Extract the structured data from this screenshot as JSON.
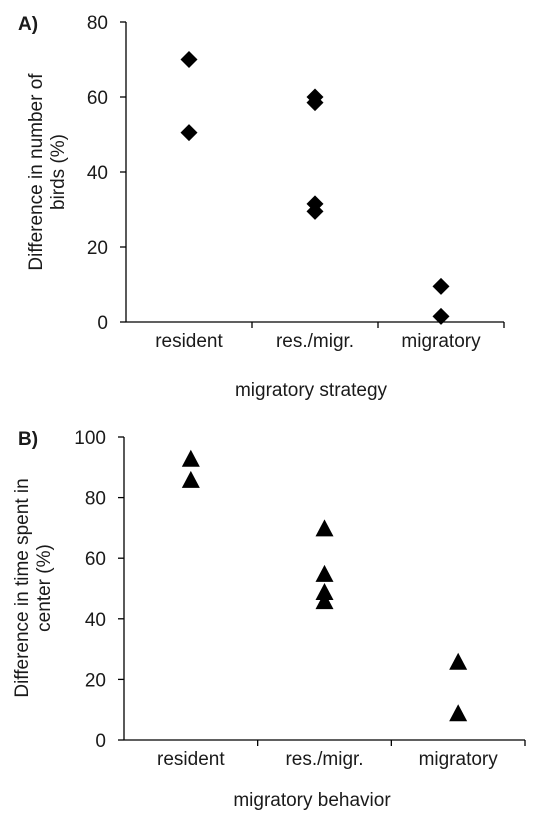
{
  "chart_data": [
    {
      "panel": "A)",
      "type": "scatter",
      "marker": "diamond",
      "categories": [
        "resident",
        "res./migr.",
        "migratory"
      ],
      "points": [
        {
          "category": "resident",
          "y": 70
        },
        {
          "category": "resident",
          "y": 50.5
        },
        {
          "category": "res./migr.",
          "y": 60
        },
        {
          "category": "res./migr.",
          "y": 58.5
        },
        {
          "category": "res./migr.",
          "y": 31.5
        },
        {
          "category": "res./migr.",
          "y": 29.5
        },
        {
          "category": "migratory",
          "y": 9.5
        },
        {
          "category": "migratory",
          "y": 1.5
        }
      ],
      "title": "",
      "xlabel": "migratory strategy",
      "ylabel": "Difference in number of birds (%)",
      "ylabel_lines": [
        "Difference in number of",
        "birds (%)"
      ],
      "ylim": [
        0,
        80
      ],
      "yticks": [
        0,
        20,
        40,
        60,
        80
      ],
      "grid": false,
      "legend": "none",
      "color": "#000000"
    },
    {
      "panel": "B)",
      "type": "scatter",
      "marker": "triangle",
      "categories": [
        "resident",
        "res./migr.",
        "migratory"
      ],
      "points": [
        {
          "category": "resident",
          "y": 93
        },
        {
          "category": "resident",
          "y": 86
        },
        {
          "category": "res./migr.",
          "y": 70
        },
        {
          "category": "res./migr.",
          "y": 55
        },
        {
          "category": "res./migr.",
          "y": 49
        },
        {
          "category": "res./migr.",
          "y": 46
        },
        {
          "category": "migratory",
          "y": 26
        },
        {
          "category": "migratory",
          "y": 9
        }
      ],
      "title": "",
      "xlabel": "migratory behavior",
      "ylabel": "Difference in time spent in center (%)",
      "ylabel_lines": [
        "Difference in time spent in",
        "center (%)"
      ],
      "ylim": [
        0,
        100
      ],
      "yticks": [
        0,
        20,
        40,
        60,
        80,
        100
      ],
      "grid": false,
      "legend": "none",
      "color": "#000000"
    }
  ]
}
